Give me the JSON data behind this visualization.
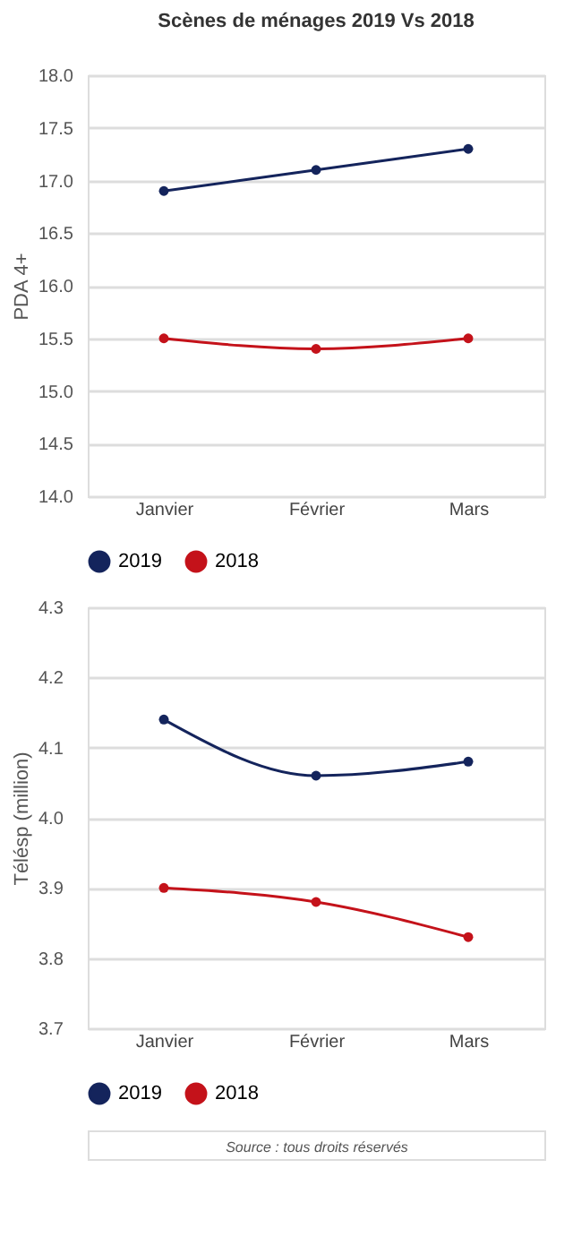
{
  "chart_data": [
    {
      "type": "line",
      "title": "Scènes de ménages 2019 Vs 2018",
      "ylabel": "PDA 4+",
      "categories": [
        "Janvier",
        "Février",
        "Mars"
      ],
      "series": [
        {
          "name": "2019",
          "color": "#14245c",
          "values": [
            16.9,
            17.1,
            17.3
          ]
        },
        {
          "name": "2018",
          "color": "#c4121a",
          "values": [
            15.5,
            15.4,
            15.5
          ]
        }
      ],
      "ylim": [
        14.0,
        18.0
      ],
      "yticks": [
        {
          "value": 14,
          "label": "14.0"
        },
        14.5,
        {
          "value": 15,
          "label": "15.0"
        },
        15.5,
        {
          "value": 16,
          "label": "16.0"
        },
        16.5,
        {
          "value": 17,
          "label": "17.0"
        },
        17.5,
        {
          "value": 18,
          "label": "18.0"
        }
      ],
      "grid": "y",
      "legend": "bottom",
      "marker": "circle",
      "line_style": "solid"
    },
    {
      "type": "line",
      "ylabel": "Télésp (million)",
      "categories": [
        "Janvier",
        "Février",
        "Mars"
      ],
      "series": [
        {
          "name": "2019",
          "color": "#14245c",
          "values": [
            4.14,
            4.06,
            4.08
          ]
        },
        {
          "name": "2018",
          "color": "#c4121a",
          "values": [
            3.9,
            3.88,
            3.83
          ]
        }
      ],
      "ylim": [
        3.7,
        4.3
      ],
      "yticks": [
        3.7,
        3.8,
        3.9,
        {
          "value": 4,
          "label": "4.0"
        },
        4.1,
        4.2,
        4.3
      ],
      "grid": "y",
      "legend": "bottom",
      "marker": "circle",
      "line_style": "solid",
      "annotations": [
        "Source : tous droits réservés"
      ]
    }
  ]
}
